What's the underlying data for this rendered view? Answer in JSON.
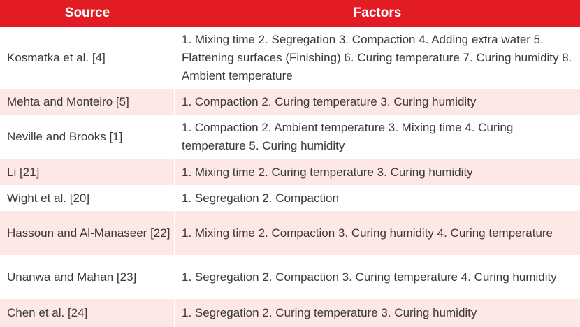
{
  "header": {
    "source": "Source",
    "factors": "Factors"
  },
  "colors": {
    "header_bg": "#e31b23",
    "row_alt_bg": "#fde8e6",
    "text": "#3a3a3a"
  },
  "rows": [
    {
      "source": "Kosmatka et al. [4]",
      "factors": "1. Mixing time 2. Segregation 3. Compaction 4. Adding extra water 5. Flattening surfaces (Finishing) 6. Curing temperature 7. Curing humidity 8. Ambient temperature"
    },
    {
      "source": "Mehta and Monteiro [5]",
      "factors": "1. Compaction 2. Curing temperature 3. Curing humidity"
    },
    {
      "source": "Neville and Brooks [1]",
      "factors": "1. Compaction 2. Ambient temperature 3. Mixing time 4. Curing temperature 5. Curing humidity"
    },
    {
      "source": "Li [21]",
      "factors": "1. Mixing time 2. Curing temperature 3. Curing humidity"
    },
    {
      "source": "Wight et al. [20]",
      "factors": "1. Segregation 2. Compaction"
    },
    {
      "source": "Hassoun and Al-Manaseer [22]",
      "factors": "1. Mixing time 2. Compaction 3. Curing humidity 4. Curing temperature"
    },
    {
      "source": "Unanwa and Mahan [23]",
      "factors": "1. Segregation 2. Compaction 3. Curing temperature 4. Curing humidity"
    },
    {
      "source": "Chen et al. [24]",
      "factors": "1. Segregation 2. Curing temperature 3. Curing humidity"
    }
  ]
}
